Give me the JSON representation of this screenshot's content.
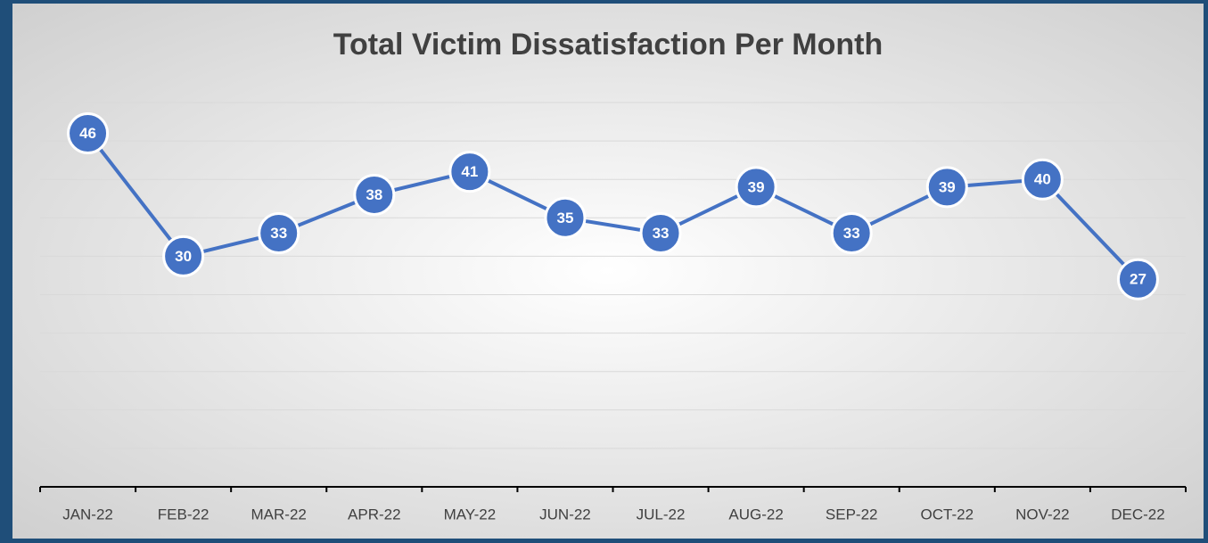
{
  "chart_data": {
    "type": "line",
    "title": "Total Victim Dissatisfaction Per Month",
    "categories": [
      "JAN-22",
      "FEB-22",
      "MAR-22",
      "APR-22",
      "MAY-22",
      "JUN-22",
      "JUL-22",
      "AUG-22",
      "SEP-22",
      "OCT-22",
      "NOV-22",
      "DEC-22"
    ],
    "series": [
      {
        "name": "Total Victim Dissatisfaction",
        "color": "#4472c4",
        "values": [
          46,
          30,
          33,
          38,
          41,
          35,
          33,
          39,
          33,
          39,
          40,
          27
        ]
      }
    ],
    "ylim": [
      0,
      50
    ],
    "yticks": [
      0,
      5,
      10,
      15,
      20,
      25,
      30,
      35,
      40,
      45,
      50
    ],
    "grid": true
  }
}
